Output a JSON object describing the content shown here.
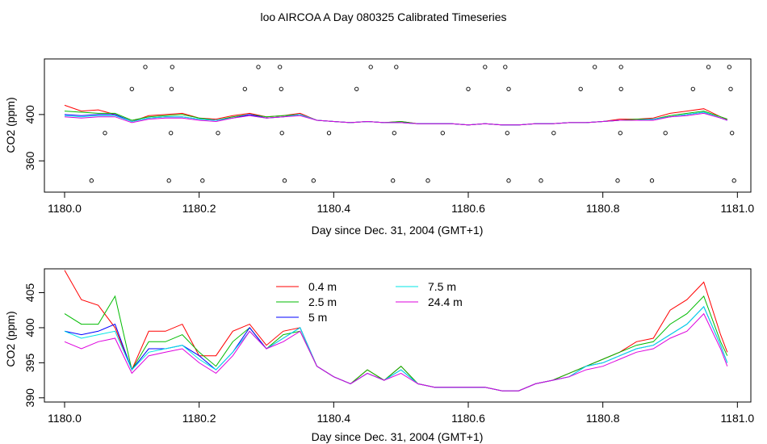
{
  "page_title": "loo AIRCOA A  Day 080325  Calibrated Timeseries",
  "colors": {
    "series": [
      "#ff0000",
      "#00bb00",
      "#0000ff",
      "#00e5e5",
      "#dd00dd"
    ],
    "axis": "#000000"
  },
  "chart_data": [
    {
      "type": "scatter",
      "title": "loo AIRCOA A  Day 080325  Calibrated Timeseries",
      "xlabel": "Day since Dec. 31, 2004 (GMT+1)",
      "ylabel": "CO2 (ppm)",
      "xlim": [
        1179.97,
        1181.02
      ],
      "ylim": [
        333,
        448
      ],
      "x_ticks": [
        "1180.0",
        "1180.2",
        "1180.4",
        "1180.6",
        "1180.8",
        "1181.0"
      ],
      "y_ticks": [
        "360",
        "400"
      ],
      "markers": [
        {
          "x": 1180.04,
          "y": 343
        },
        {
          "x": 1180.06,
          "y": 384
        },
        {
          "x": 1180.1,
          "y": 422
        },
        {
          "x": 1180.12,
          "y": 441
        },
        {
          "x": 1180.155,
          "y": 343
        },
        {
          "x": 1180.158,
          "y": 384
        },
        {
          "x": 1180.159,
          "y": 422
        },
        {
          "x": 1180.16,
          "y": 441
        },
        {
          "x": 1180.205,
          "y": 343
        },
        {
          "x": 1180.228,
          "y": 384
        },
        {
          "x": 1180.268,
          "y": 422
        },
        {
          "x": 1180.288,
          "y": 441
        },
        {
          "x": 1180.32,
          "y": 441
        },
        {
          "x": 1180.322,
          "y": 422
        },
        {
          "x": 1180.323,
          "y": 384
        },
        {
          "x": 1180.327,
          "y": 343
        },
        {
          "x": 1180.37,
          "y": 343
        },
        {
          "x": 1180.393,
          "y": 384
        },
        {
          "x": 1180.434,
          "y": 422
        },
        {
          "x": 1180.455,
          "y": 441
        },
        {
          "x": 1180.488,
          "y": 343
        },
        {
          "x": 1180.49,
          "y": 384
        },
        {
          "x": 1180.493,
          "y": 441
        },
        {
          "x": 1180.54,
          "y": 343
        },
        {
          "x": 1180.562,
          "y": 384
        },
        {
          "x": 1180.6,
          "y": 422
        },
        {
          "x": 1180.625,
          "y": 441
        },
        {
          "x": 1180.655,
          "y": 441
        },
        {
          "x": 1180.658,
          "y": 384
        },
        {
          "x": 1180.66,
          "y": 343
        },
        {
          "x": 1180.66,
          "y": 422
        },
        {
          "x": 1180.708,
          "y": 343
        },
        {
          "x": 1180.727,
          "y": 384
        },
        {
          "x": 1180.767,
          "y": 422
        },
        {
          "x": 1180.788,
          "y": 441
        },
        {
          "x": 1180.822,
          "y": 343
        },
        {
          "x": 1180.826,
          "y": 384
        },
        {
          "x": 1180.827,
          "y": 422
        },
        {
          "x": 1180.827,
          "y": 441
        },
        {
          "x": 1180.873,
          "y": 343
        },
        {
          "x": 1180.893,
          "y": 384
        },
        {
          "x": 1180.934,
          "y": 422
        },
        {
          "x": 1180.957,
          "y": 441
        },
        {
          "x": 1180.988,
          "y": 441
        },
        {
          "x": 1180.99,
          "y": 422
        },
        {
          "x": 1180.992,
          "y": 384
        },
        {
          "x": 1180.995,
          "y": 343
        }
      ],
      "x": [
        1180.0,
        1180.025,
        1180.05,
        1180.075,
        1180.1,
        1180.125,
        1180.15,
        1180.175,
        1180.2,
        1180.225,
        1180.25,
        1180.275,
        1180.3,
        1180.325,
        1180.35,
        1180.375,
        1180.4,
        1180.425,
        1180.45,
        1180.475,
        1180.5,
        1180.525,
        1180.55,
        1180.575,
        1180.6,
        1180.625,
        1180.65,
        1180.675,
        1180.7,
        1180.725,
        1180.75,
        1180.775,
        1180.8,
        1180.825,
        1180.85,
        1180.875,
        1180.9,
        1180.925,
        1180.95,
        1180.975,
        1180.985
      ],
      "series": [
        {
          "values": [
            408,
            403,
            404,
            400,
            394,
            399,
            400,
            401,
            397,
            396,
            399,
            401,
            398,
            399,
            401,
            395,
            394,
            393,
            394,
            393,
            394,
            392,
            392,
            392,
            391,
            392,
            391,
            391,
            392,
            392,
            393,
            393,
            394,
            396,
            396,
            397,
            401,
            403,
            405,
            398,
            396
          ]
        },
        {
          "values": [
            403,
            402,
            401,
            401,
            395,
            398,
            399,
            400,
            397,
            395,
            398,
            400,
            398,
            399,
            400,
            395,
            394,
            393,
            394,
            393,
            394,
            392,
            392,
            392,
            391,
            392,
            391,
            391,
            392,
            392,
            393,
            393,
            394,
            395,
            396,
            396,
            399,
            401,
            403,
            398,
            396
          ]
        },
        {
          "values": [
            400,
            399,
            400,
            400,
            394,
            397,
            398,
            398,
            396,
            395,
            397,
            400,
            397,
            398,
            400,
            395,
            394,
            393,
            394,
            393,
            393,
            392,
            392,
            392,
            391,
            392,
            391,
            391,
            392,
            392,
            393,
            393,
            394,
            395,
            395,
            396,
            398,
            400,
            402,
            397,
            395
          ]
        },
        {
          "values": [
            399,
            398,
            399,
            399,
            394,
            397,
            398,
            398,
            396,
            395,
            397,
            399,
            397,
            398,
            400,
            395,
            394,
            393,
            394,
            393,
            393,
            392,
            392,
            392,
            391,
            392,
            391,
            391,
            392,
            392,
            393,
            393,
            394,
            395,
            395,
            396,
            398,
            400,
            402,
            397,
            395
          ]
        },
        {
          "values": [
            398,
            397,
            398,
            398,
            393,
            396,
            397,
            397,
            395,
            394,
            397,
            399,
            397,
            398,
            399,
            395,
            394,
            393,
            394,
            393,
            393,
            392,
            392,
            392,
            391,
            392,
            391,
            391,
            392,
            392,
            393,
            393,
            394,
            395,
            395,
            395,
            398,
            399,
            401,
            397,
            395
          ]
        }
      ]
    },
    {
      "type": "line",
      "xlabel": "Day since Dec. 31, 2004 (GMT+1)",
      "ylabel": "CO2 (ppm)",
      "xlim": [
        1179.97,
        1181.02
      ],
      "ylim": [
        389.4,
        408.4
      ],
      "x_ticks": [
        "1180.0",
        "1180.2",
        "1180.4",
        "1180.6",
        "1180.8",
        "1181.0"
      ],
      "y_ticks": [
        "390",
        "395",
        "400",
        "405"
      ],
      "legend_position": "top-left",
      "x": [
        1180.0,
        1180.025,
        1180.05,
        1180.075,
        1180.1,
        1180.125,
        1180.15,
        1180.175,
        1180.2,
        1180.225,
        1180.25,
        1180.275,
        1180.3,
        1180.325,
        1180.35,
        1180.375,
        1180.4,
        1180.425,
        1180.45,
        1180.475,
        1180.5,
        1180.525,
        1180.55,
        1180.575,
        1180.6,
        1180.625,
        1180.65,
        1180.675,
        1180.7,
        1180.725,
        1180.75,
        1180.775,
        1180.8,
        1180.825,
        1180.85,
        1180.875,
        1180.9,
        1180.925,
        1180.95,
        1180.975,
        1180.985
      ],
      "series": [
        {
          "name": "0.4 m",
          "values": [
            408.2,
            404.0,
            403.2,
            400.0,
            394.0,
            399.5,
            399.5,
            400.5,
            396.0,
            396.0,
            399.5,
            400.5,
            397.5,
            399.5,
            400.0,
            394.5,
            393.0,
            392.0,
            394.0,
            392.5,
            394.5,
            392.0,
            391.5,
            391.5,
            391.5,
            391.5,
            391.0,
            391.0,
            392.0,
            392.5,
            393.5,
            394.5,
            395.5,
            396.5,
            398.0,
            398.5,
            402.5,
            404.0,
            406.5,
            399.0,
            396.5
          ]
        },
        {
          "name": "2.5 m",
          "values": [
            402.0,
            400.5,
            400.5,
            404.5,
            394.0,
            398.0,
            398.0,
            399.0,
            396.5,
            394.5,
            398.0,
            400.0,
            397.0,
            399.0,
            399.5,
            394.5,
            393.0,
            392.0,
            394.0,
            392.5,
            394.5,
            392.0,
            391.5,
            391.5,
            391.5,
            391.5,
            391.0,
            391.0,
            392.0,
            392.5,
            393.5,
            394.5,
            395.5,
            396.5,
            397.5,
            398.0,
            400.5,
            402.0,
            404.5,
            398.0,
            396.0
          ]
        },
        {
          "name": "5 m",
          "values": [
            399.5,
            399.0,
            399.5,
            400.5,
            394.0,
            397.0,
            397.0,
            397.5,
            396.0,
            394.0,
            396.5,
            400.0,
            397.0,
            398.5,
            400.0,
            394.5,
            393.0,
            392.0,
            393.5,
            392.5,
            394.0,
            392.0,
            391.5,
            391.5,
            391.5,
            391.5,
            391.0,
            391.0,
            392.0,
            392.5,
            393.0,
            394.5,
            395.0,
            396.0,
            397.0,
            397.5,
            399.0,
            400.5,
            403.0,
            397.5,
            395.0
          ]
        },
        {
          "name": "7.5 m",
          "values": [
            399.5,
            398.5,
            399.0,
            399.5,
            394.0,
            396.5,
            397.0,
            397.5,
            395.5,
            394.0,
            396.5,
            399.5,
            397.0,
            398.5,
            400.0,
            394.5,
            393.0,
            392.0,
            393.5,
            392.5,
            394.0,
            392.0,
            391.5,
            391.5,
            391.5,
            391.5,
            391.0,
            391.0,
            392.0,
            392.5,
            393.0,
            394.5,
            395.0,
            396.0,
            397.0,
            397.5,
            399.0,
            400.5,
            403.0,
            397.5,
            395.0
          ]
        },
        {
          "name": "24.4 m",
          "values": [
            398.0,
            397.0,
            398.0,
            398.5,
            393.5,
            396.0,
            396.5,
            397.0,
            395.0,
            393.5,
            396.0,
            399.5,
            397.0,
            398.0,
            399.5,
            394.5,
            393.0,
            392.0,
            393.5,
            392.5,
            393.5,
            392.0,
            391.5,
            391.5,
            391.5,
            391.5,
            391.0,
            391.0,
            392.0,
            392.5,
            393.0,
            394.0,
            394.5,
            395.5,
            396.5,
            397.0,
            398.5,
            399.5,
            402.0,
            397.0,
            394.5
          ]
        }
      ]
    }
  ]
}
